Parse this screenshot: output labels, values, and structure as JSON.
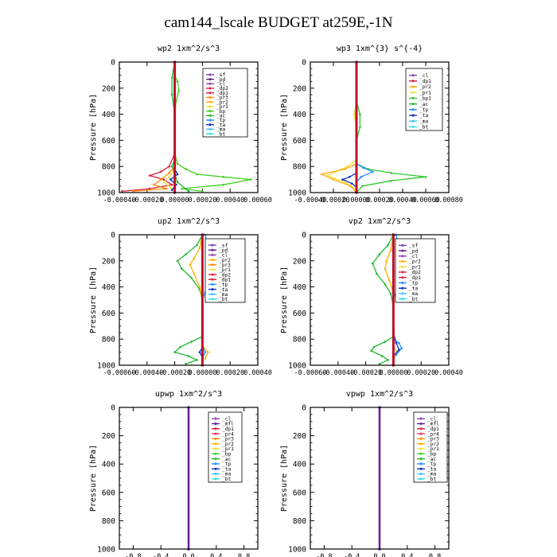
{
  "title": "cam144_lscale  BUDGET at259E,-1N",
  "colors": {
    "sf": "#7b3fb5",
    "pd": "#5b1f8a",
    "cl": "#8e44ad",
    "dp2": "#e0204a",
    "dp1": "#d8203c",
    "pr3": "#ff8c00",
    "pr2": "#ffb000",
    "pr1": "#f0e040",
    "bp": "#40d020",
    "ac": "#20b830",
    "tp": "#1e90ff",
    "ta": "#1030c0",
    "ma": "#40c0ff",
    "bt": "#30e0e0",
    "mfl": "#6a1b9a",
    "pr4": "#e83060",
    "bp1": "#30c830",
    "thick": "#c0102a"
  },
  "chart_data": [
    {
      "type": "line",
      "title": "wp2   1xm^2/s^3",
      "ylabel": "Pressure [hPa]",
      "ylim": [
        1000,
        0
      ],
      "yticks": [
        0,
        200,
        400,
        600,
        800,
        1000
      ],
      "xlim": [
        -0.0004,
        0.0006
      ],
      "xticks": [
        "-0.00040",
        "-0.00020",
        "0.00000",
        "0.00020",
        "0.00040",
        "0.00060"
      ],
      "legend": [
        "_sf",
        "_pd",
        "_cl",
        "_dp2",
        "_dp1",
        "_pr3",
        "_pr2",
        "_pr1",
        "_bp",
        "_ac",
        "_tp",
        "_ta",
        "_ma",
        "_bt"
      ],
      "legend_position": "top-right",
      "series": [
        {
          "name": "_bp",
          "color": "bp",
          "points": [
            [
              0.0,
              0
            ],
            [
              0.0,
              100
            ],
            [
              2e-05,
              150
            ],
            [
              3e-05,
              220
            ],
            [
              1e-05,
              300
            ],
            [
              0.0,
              400
            ],
            [
              0.0,
              700
            ],
            [
              2e-05,
              780
            ],
            [
              8e-05,
              820
            ],
            [
              0.00016,
              860
            ],
            [
              0.00035,
              880
            ],
            [
              0.00055,
              900
            ],
            [
              0.00035,
              940
            ],
            [
              5e-05,
              970
            ],
            [
              0.0002,
              990
            ]
          ]
        },
        {
          "name": "_ac",
          "color": "ac",
          "points": [
            [
              0.0,
              0
            ],
            [
              -2e-05,
              120
            ],
            [
              -2e-05,
              250
            ],
            [
              0.0,
              400
            ],
            [
              0.0,
              750
            ],
            [
              -2e-05,
              800
            ],
            [
              0.0,
              860
            ],
            [
              2e-05,
              920
            ],
            [
              0.0001,
              990
            ]
          ]
        },
        {
          "name": "_dp1",
          "color": "dp1",
          "points": [
            [
              0.0,
              0
            ],
            [
              0.0,
              700
            ],
            [
              -4e-05,
              800
            ],
            [
              -0.0001,
              840
            ],
            [
              -0.00018,
              870
            ],
            [
              -8e-05,
              900
            ],
            [
              -2e-05,
              940
            ],
            [
              -0.00018,
              970
            ],
            [
              -0.00038,
              990
            ]
          ]
        },
        {
          "name": "_pr3",
          "color": "pr3",
          "points": [
            [
              0.0,
              0
            ],
            [
              0.0,
              800
            ],
            [
              -4e-05,
              850
            ],
            [
              -0.0001,
              900
            ],
            [
              -0.00015,
              940
            ],
            [
              -6e-05,
              970
            ],
            [
              -0.0003,
              990
            ]
          ]
        },
        {
          "name": "_pr1",
          "color": "pr1",
          "points": [
            [
              0.0,
              0
            ],
            [
              0.0,
              820
            ],
            [
              -4e-05,
              880
            ],
            [
              -8e-05,
              920
            ],
            [
              -3e-05,
              960
            ],
            [
              0.0,
              990
            ]
          ]
        },
        {
          "name": "_ta",
          "color": "ta",
          "points": [
            [
              0.0,
              0
            ],
            [
              0.0,
              820
            ],
            [
              2e-05,
              860
            ],
            [
              -3e-05,
              900
            ],
            [
              1e-05,
              940
            ],
            [
              -2e-05,
              980
            ]
          ]
        },
        {
          "name": "_sf",
          "color": "thick",
          "width": 3,
          "points": [
            [
              0.0,
              0
            ],
            [
              0.0,
              1000
            ]
          ]
        }
      ]
    },
    {
      "type": "line",
      "title": "wp3   1xm^{3} s^{-4}",
      "ylabel": "Pressure [hPa]",
      "ylim": [
        1000,
        0
      ],
      "yticks": [
        0,
        200,
        400,
        600,
        800,
        1000
      ],
      "xlim": [
        -0.0004,
        0.0008
      ],
      "xticks": [
        "-0.00040",
        "-0.00020",
        "0.00000",
        "0.00020",
        "0.00040",
        "0.00060",
        "0.00080"
      ],
      "legend": [
        "_cl",
        "_dp1",
        "_pr2",
        "_pr1",
        "_bp1",
        "_ac",
        "_tp",
        "_ta",
        "_ma",
        "_bt"
      ],
      "legend_position": "top-right",
      "series": [
        {
          "name": "_bp1",
          "color": "bp1",
          "points": [
            [
              0.0,
              0
            ],
            [
              0.0,
              300
            ],
            [
              3e-05,
              400
            ],
            [
              3e-05,
              500
            ],
            [
              0.0,
              600
            ],
            [
              0.0,
              780
            ],
            [
              0.0001,
              820
            ],
            [
              0.0003,
              850
            ],
            [
              0.0006,
              880
            ],
            [
              0.0003,
              910
            ],
            [
              5e-05,
              950
            ],
            [
              0.0,
              1000
            ]
          ]
        },
        {
          "name": "_pr1",
          "color": "pr1",
          "points": [
            [
              0.0,
              0
            ],
            [
              0.0,
              300
            ],
            [
              -2e-05,
              400
            ],
            [
              0.0,
              500
            ],
            [
              0.0,
              750
            ],
            [
              -8e-05,
              800
            ],
            [
              -0.00018,
              840
            ],
            [
              -0.00025,
              870
            ],
            [
              -0.0001,
              920
            ],
            [
              -3e-05,
              960
            ],
            [
              0.0,
              1000
            ]
          ]
        },
        {
          "name": "_pr2",
          "color": "pr2",
          "points": [
            [
              0.0,
              0
            ],
            [
              0.0,
              780
            ],
            [
              -0.0001,
              820
            ],
            [
              -0.0003,
              860
            ],
            [
              -0.0002,
              900
            ],
            [
              -5e-05,
              950
            ],
            [
              0.0,
              1000
            ]
          ]
        },
        {
          "name": "_tp",
          "color": "tp",
          "points": [
            [
              0.0,
              0
            ],
            [
              0.0,
              780
            ],
            [
              6e-05,
              810
            ],
            [
              0.00014,
              840
            ],
            [
              4e-05,
              880
            ],
            [
              0.0,
              920
            ]
          ]
        },
        {
          "name": "_ta",
          "color": "ta",
          "points": [
            [
              0.0,
              0
            ],
            [
              0.0,
              850
            ],
            [
              -6e-05,
              880
            ],
            [
              -0.00012,
              900
            ],
            [
              -4e-05,
              930
            ],
            [
              0.0,
              960
            ]
          ]
        },
        {
          "name": "_dp1",
          "color": "thick",
          "width": 3,
          "points": [
            [
              0.0,
              0
            ],
            [
              0.0,
              1000
            ]
          ]
        }
      ]
    },
    {
      "type": "line",
      "title": "up2   1xm^2/s^3",
      "ylabel": "Pressure [hPa]",
      "ylim": [
        1000,
        0
      ],
      "yticks": [
        0,
        200,
        400,
        600,
        800,
        1000
      ],
      "xlim": [
        -0.0006,
        0.0004
      ],
      "xticks": [
        "-0.00060",
        "-0.00040",
        "-0.00020",
        "0.00000",
        "0.00020",
        "0.00040"
      ],
      "legend": [
        "_sf",
        "_pd",
        "_cl",
        "_pr2",
        "_pr3",
        "_pr1",
        "_dp2",
        "_dp1",
        "_tp",
        "_ta",
        "_ma",
        "_bt"
      ],
      "legend_position": "top-right",
      "series": [
        {
          "name": "_ac",
          "color": "ac",
          "points": [
            [
              0.0,
              0
            ],
            [
              -4e-05,
              80
            ],
            [
              -0.00012,
              150
            ],
            [
              -0.00018,
              200
            ],
            [
              -0.00015,
              260
            ],
            [
              -8e-05,
              330
            ],
            [
              -2e-05,
              420
            ],
            [
              0.0,
              500
            ],
            [
              0.0,
              780
            ],
            [
              -8e-05,
              820
            ],
            [
              -0.00016,
              860
            ],
            [
              -0.0002,
              900
            ],
            [
              -0.0001,
              930
            ],
            [
              -4e-05,
              960
            ],
            [
              -0.00012,
              990
            ]
          ]
        },
        {
          "name": "_pr2",
          "color": "pr2",
          "points": [
            [
              0.0,
              0
            ],
            [
              -2e-05,
              100
            ],
            [
              -6e-05,
              180
            ],
            [
              -9e-05,
              230
            ],
            [
              -6e-05,
              300
            ],
            [
              -2e-05,
              400
            ],
            [
              0.0,
              500
            ],
            [
              0.0,
              850
            ],
            [
              4e-05,
              900
            ],
            [
              2e-05,
              950
            ]
          ]
        },
        {
          "name": "_tp",
          "color": "tp",
          "points": [
            [
              2e-05,
              0
            ],
            [
              4e-05,
              100
            ],
            [
              8e-05,
              180
            ],
            [
              9e-05,
              240
            ],
            [
              6e-05,
              320
            ],
            [
              3e-05,
              400
            ],
            [
              0.0,
              500
            ],
            [
              0.0,
              850
            ],
            [
              2e-05,
              900
            ],
            [
              0.0,
              950
            ]
          ]
        },
        {
          "name": "_ta",
          "color": "ta",
          "points": [
            [
              0.0,
              700
            ],
            [
              0.0,
              860
            ],
            [
              -2e-05,
              900
            ],
            [
              0.0,
              940
            ]
          ]
        },
        {
          "name": "_sf",
          "color": "thick",
          "width": 3,
          "points": [
            [
              0.0,
              0
            ],
            [
              0.0,
              1000
            ]
          ]
        }
      ]
    },
    {
      "type": "line",
      "title": "vp2   1xm^2/s^3",
      "ylabel": "Pressure [hPa]",
      "ylim": [
        1000,
        0
      ],
      "yticks": [
        0,
        200,
        400,
        600,
        800,
        1000
      ],
      "xlim": [
        -0.0006,
        0.0004
      ],
      "xticks": [
        "-0.00060",
        "-0.00040",
        "-0.00020",
        "0.00000",
        "0.00020",
        "0.00040"
      ],
      "legend": [
        "_sf",
        "_pd",
        "_cl",
        "_pr2",
        "_pr1",
        "_dp2",
        "_dp1",
        "_tp",
        "_ta",
        "_ma",
        "_bt"
      ],
      "legend_position": "top-right",
      "series": [
        {
          "name": "_ac",
          "color": "ac",
          "points": [
            [
              0.0,
              0
            ],
            [
              -4e-05,
              80
            ],
            [
              -0.0001,
              150
            ],
            [
              -0.00015,
              220
            ],
            [
              -0.00012,
              300
            ],
            [
              -6e-05,
              380
            ],
            [
              -2e-05,
              450
            ],
            [
              0.0,
              550
            ],
            [
              0.0,
              780
            ],
            [
              -6e-05,
              820
            ],
            [
              -0.00014,
              860
            ],
            [
              -0.00016,
              890
            ],
            [
              -8e-05,
              930
            ],
            [
              -4e-05,
              960
            ],
            [
              -0.0001,
              990
            ]
          ]
        },
        {
          "name": "_pr2",
          "color": "pr2",
          "points": [
            [
              0.0,
              0
            ],
            [
              -2e-05,
              120
            ],
            [
              -5e-05,
              200
            ],
            [
              -6e-05,
              260
            ],
            [
              -3e-05,
              350
            ],
            [
              0.0,
              450
            ],
            [
              0.0,
              860
            ],
            [
              3e-05,
              900
            ],
            [
              0.0,
              950
            ]
          ]
        },
        {
          "name": "_tp",
          "color": "tp",
          "points": [
            [
              2e-05,
              0
            ],
            [
              4e-05,
              100
            ],
            [
              7e-05,
              200
            ],
            [
              6e-05,
              300
            ],
            [
              3e-05,
              400
            ],
            [
              0.0,
              500
            ],
            [
              0.0,
              800
            ],
            [
              4e-05,
              830
            ],
            [
              6e-05,
              870
            ],
            [
              2e-05,
              920
            ]
          ]
        },
        {
          "name": "_ta",
          "color": "ta",
          "points": [
            [
              0.0,
              750
            ],
            [
              2e-05,
              830
            ],
            [
              4e-05,
              880
            ],
            [
              0.0,
              930
            ]
          ]
        },
        {
          "name": "_sf",
          "color": "thick",
          "width": 3,
          "points": [
            [
              0.0,
              0
            ],
            [
              0.0,
              1000
            ]
          ]
        }
      ]
    },
    {
      "type": "line",
      "title": "upwp   1xm^2/s^3",
      "ylabel": "Pressure [hPa]",
      "ylim": [
        1000,
        0
      ],
      "yticks": [
        0,
        200,
        400,
        600,
        800,
        1000
      ],
      "xlim": [
        -1.0,
        1.0
      ],
      "xticks": [
        "-0.8",
        "-0.4",
        "0.0",
        "0.4",
        "0.8"
      ],
      "legend": [
        "_cl",
        "_mfl",
        "_dp1",
        "_pr4",
        "_pr3",
        "_pr2",
        "_pr1",
        "_bp",
        "_ac",
        "_tp",
        "_ta",
        "_ma",
        "_bt"
      ],
      "legend_position": "top-right",
      "series": [
        {
          "name": "_cl",
          "color": "mfl",
          "width": 2.5,
          "points": [
            [
              0.0,
              0
            ],
            [
              0.0,
              1000
            ]
          ]
        }
      ]
    },
    {
      "type": "line",
      "title": "vpwp   1xm^2/s^3",
      "ylabel": "Pressure [hPa]",
      "ylim": [
        1000,
        0
      ],
      "yticks": [
        0,
        200,
        400,
        600,
        800,
        1000
      ],
      "xlim": [
        -1.0,
        1.0
      ],
      "xticks": [
        "-0.8",
        "-0.4",
        "0.0",
        "0.4",
        "0.8"
      ],
      "legend": [
        "_cl",
        "_mfl",
        "_dp1",
        "_pr4",
        "_pr3",
        "_pr2",
        "_pr1",
        "_bp",
        "_ac",
        "_tp",
        "_ta",
        "_ma",
        "_bt"
      ],
      "legend_position": "top-right",
      "series": [
        {
          "name": "_cl",
          "color": "mfl",
          "width": 2.5,
          "points": [
            [
              0.0,
              0
            ],
            [
              0.0,
              1000
            ]
          ]
        }
      ]
    }
  ]
}
